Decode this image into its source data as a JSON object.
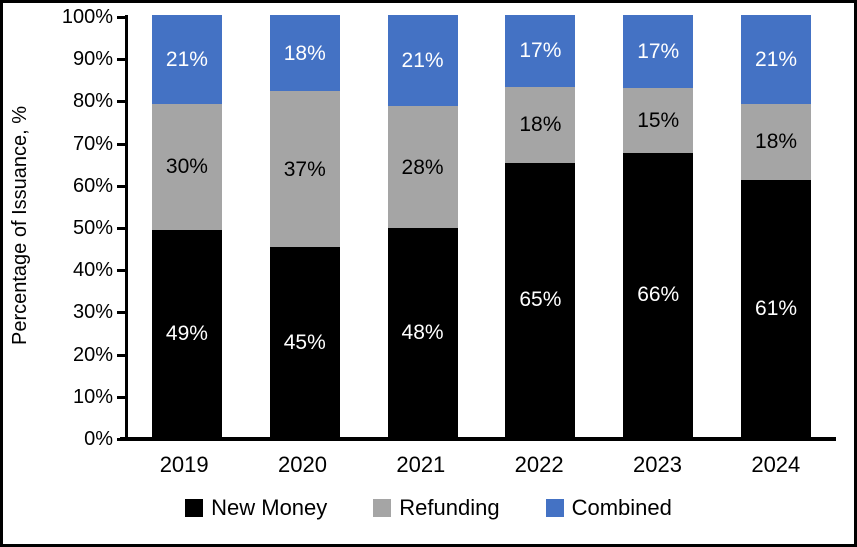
{
  "chart_data": {
    "type": "bar",
    "stacked": true,
    "title": "",
    "xlabel": "",
    "ylabel": "Percentage of Issuance, %",
    "ylim": [
      0,
      100
    ],
    "yticks": [
      "0%",
      "10%",
      "20%",
      "30%",
      "40%",
      "50%",
      "60%",
      "70%",
      "80%",
      "90%",
      "100%"
    ],
    "grid": false,
    "legend_position": "bottom",
    "categories": [
      "2019",
      "2020",
      "2021",
      "2022",
      "2023",
      "2024"
    ],
    "series": [
      {
        "name": "New Money",
        "color": "#000000",
        "label_color": "#ffffff",
        "values": [
          49,
          45,
          48,
          65,
          66,
          61
        ],
        "labels": [
          "49%",
          "45%",
          "48%",
          "65%",
          "66%",
          "61%"
        ]
      },
      {
        "name": "Refunding",
        "color": "#A5A5A5",
        "label_color": "#000000",
        "values": [
          30,
          37,
          28,
          18,
          15,
          18
        ],
        "labels": [
          "30%",
          "37%",
          "28%",
          "18%",
          "15%",
          "18%"
        ]
      },
      {
        "name": "Combined",
        "color": "#4472C4",
        "label_color": "#ffffff",
        "values": [
          21,
          18,
          21,
          17,
          17,
          21
        ],
        "labels": [
          "21%",
          "18%",
          "21%",
          "17%",
          "17%",
          "21%"
        ]
      }
    ]
  }
}
